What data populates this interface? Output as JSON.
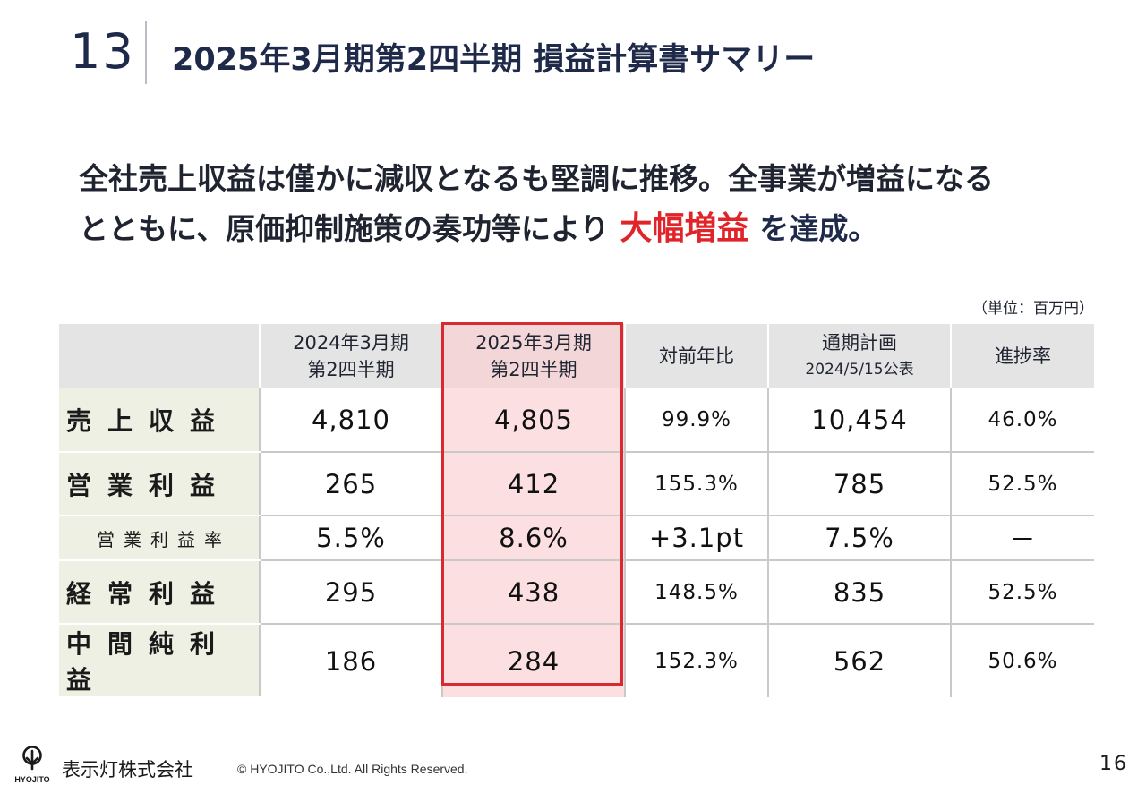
{
  "header": {
    "section_number": "13",
    "title": "2025年3月期第2四半期 損益計算書サマリー"
  },
  "lead": {
    "line1": "全社売上収益は僅かに減収となるも堅調に推移。全事業が増益になる",
    "line2_pre": "とともに、原価抑制施策の奏功等により",
    "highlight": "大幅増益",
    "line2_post": "を達成。"
  },
  "unit_note": "（単位：百万円）",
  "table": {
    "headers": [
      {
        "line1": "2024年3月期",
        "line2": "第2四半期"
      },
      {
        "line1": "2025年3月期",
        "line2": "第2四半期"
      },
      {
        "line1": "対前年比",
        "line2": ""
      },
      {
        "line1": "通期計画",
        "line2": "2024/5/15公表"
      },
      {
        "line1": "進捗率",
        "line2": ""
      }
    ],
    "rows": [
      {
        "label": "売上収益",
        "values": [
          "4,810",
          "4,805",
          "99.9%",
          "10,454",
          "46.0%"
        ]
      },
      {
        "label": "営業利益",
        "values": [
          "265",
          "412",
          "155.3%",
          "785",
          "52.5%"
        ]
      },
      {
        "label": "営業利益率",
        "values": [
          "5.5%",
          "8.6%",
          "+3.1pt",
          "7.5%",
          "－"
        ]
      },
      {
        "label": "経常利益",
        "values": [
          "295",
          "438",
          "148.5%",
          "835",
          "52.5%"
        ]
      },
      {
        "label": "中間純利益",
        "values": [
          "186",
          "284",
          "152.3%",
          "562",
          "50.6%"
        ]
      }
    ]
  },
  "footer": {
    "logo_text": "HYOJITO",
    "company": "表示灯株式会社",
    "copyright": "© HYOJITO Co.,Ltd. All Rights Reserved.",
    "page_number": "16"
  },
  "colors": {
    "navy": "#1f2a4a",
    "accent_red": "#e0242a",
    "highlight_fill": "#fcdfe1",
    "row_label_fill": "#eef0e4",
    "header_fill": "#e4e4e4"
  }
}
